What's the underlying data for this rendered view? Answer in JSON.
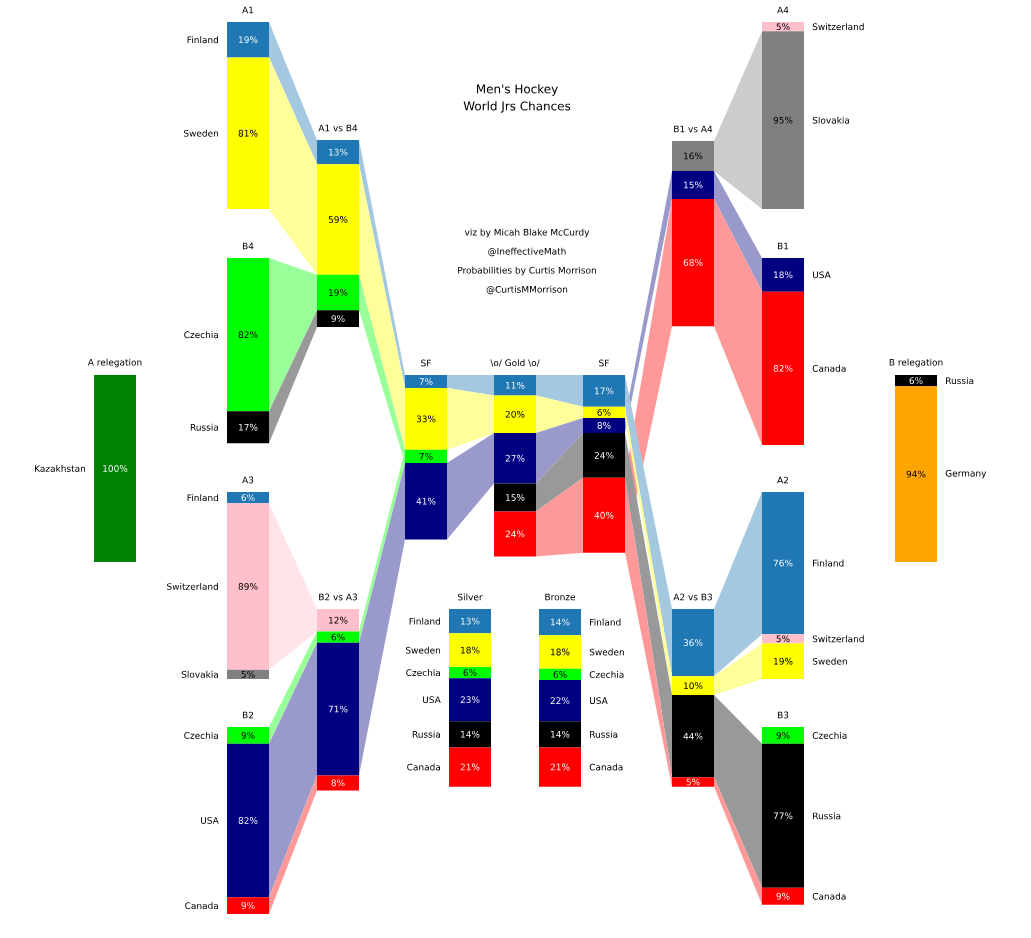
{
  "chart_data": [
    {
      "type": "other",
      "title": "Men's Hockey",
      "subtitle": "World Jrs Chances",
      "annotations": [
        "viz by Micah Blake McCurdy",
        "@IneffectiveMath",
        "Probabilities by Curtis Morrison",
        "@CurtisMMorrison"
      ]
    },
    {
      "type": "other",
      "title": "A1",
      "categories": [
        "Finland",
        "Sweden"
      ],
      "values": [
        19,
        81
      ],
      "colors": [
        "#1f77b4",
        "#ffff00"
      ],
      "value_labels": [
        "19%",
        "81%"
      ]
    },
    {
      "type": "other",
      "title": "B4",
      "categories": [
        "Czechia",
        "Russia"
      ],
      "values": [
        82,
        17
      ],
      "colors": [
        "#00ff00",
        "#000000"
      ],
      "value_labels": [
        "82%",
        "17%"
      ]
    },
    {
      "type": "other",
      "title": "A3",
      "categories": [
        "Finland",
        "Switzerland",
        "Slovakia"
      ],
      "values": [
        6,
        89,
        5
      ],
      "colors": [
        "#1f77b4",
        "#ffc0cb",
        "#808080"
      ],
      "value_labels": [
        "6%",
        "89%",
        "5%"
      ]
    },
    {
      "type": "other",
      "title": "B2",
      "categories": [
        "Czechia",
        "USA",
        "Canada"
      ],
      "values": [
        9,
        82,
        9
      ],
      "colors": [
        "#00ff00",
        "#000080",
        "#ff0000"
      ],
      "value_labels": [
        "9%",
        "82%",
        "9%"
      ]
    },
    {
      "type": "other",
      "title": "A relegation",
      "categories": [
        "Kazakhstan"
      ],
      "values": [
        100
      ],
      "colors": [
        "#008000"
      ],
      "value_labels": [
        "100%"
      ]
    },
    {
      "type": "other",
      "title": "A1 vs B4",
      "categories": [
        null,
        null,
        null,
        null
      ],
      "values": [
        13,
        59,
        19,
        9
      ],
      "colors": [
        "#1f77b4",
        "#ffff00",
        "#00ff00",
        "#000000"
      ],
      "value_labels": [
        "13%",
        "59%",
        "19%",
        "9%"
      ]
    },
    {
      "type": "other",
      "title": "B2 vs A3",
      "categories": [
        null,
        null,
        null,
        null
      ],
      "values": [
        12,
        6,
        71,
        8
      ],
      "colors": [
        "#ffc0cb",
        "#00ff00",
        "#000080",
        "#ff0000"
      ],
      "value_labels": [
        "12%",
        "6%",
        "71%",
        "8%"
      ]
    },
    {
      "type": "other",
      "title": "SF",
      "categories": [
        null,
        null,
        null,
        null
      ],
      "values": [
        7,
        33,
        7,
        41
      ],
      "colors": [
        "#1f77b4",
        "#ffff00",
        "#00ff00",
        "#000080"
      ],
      "value_labels": [
        "7%",
        "33%",
        "7%",
        "41%"
      ]
    },
    {
      "type": "other",
      "title": "\\o/ Gold \\o/",
      "categories": [
        null,
        null,
        null,
        null,
        null
      ],
      "values": [
        11,
        20,
        27,
        15,
        24
      ],
      "colors": [
        "#1f77b4",
        "#ffff00",
        "#000080",
        "#000000",
        "#ff0000"
      ],
      "value_labels": [
        "11%",
        "20%",
        "27%",
        "15%",
        "24%"
      ]
    },
    {
      "type": "other",
      "title": "SF",
      "categories": [
        null,
        null,
        null,
        null,
        null
      ],
      "values": [
        17,
        6,
        8,
        24,
        40
      ],
      "colors": [
        "#1f77b4",
        "#ffff00",
        "#000080",
        "#000000",
        "#ff0000"
      ],
      "value_labels": [
        "17%",
        "6%",
        "8%",
        "24%",
        "40%"
      ]
    },
    {
      "type": "other",
      "title": "Silver",
      "categories": [
        "Finland",
        "Sweden",
        "Czechia",
        "USA",
        "Russia",
        "Canada"
      ],
      "values": [
        13,
        18,
        6,
        23,
        14,
        21
      ],
      "colors": [
        "#1f77b4",
        "#ffff00",
        "#00ff00",
        "#000080",
        "#000000",
        "#ff0000"
      ],
      "value_labels": [
        "13%",
        "18%",
        "6%",
        "23%",
        "14%",
        "21%"
      ]
    },
    {
      "type": "other",
      "title": "Bronze",
      "categories": [
        "Finland",
        "Sweden",
        "Czechia",
        "USA",
        "Russia",
        "Canada"
      ],
      "values": [
        14,
        18,
        6,
        22,
        14,
        21
      ],
      "colors": [
        "#1f77b4",
        "#ffff00",
        "#00ff00",
        "#000080",
        "#000000",
        "#ff0000"
      ],
      "value_labels": [
        "14%",
        "18%",
        "6%",
        "22%",
        "14%",
        "21%"
      ]
    },
    {
      "type": "other",
      "title": "B1 vs A4",
      "categories": [
        null,
        null,
        null
      ],
      "values": [
        16,
        15,
        68
      ],
      "colors": [
        "#808080",
        "#000080",
        "#ff0000"
      ],
      "value_labels": [
        "16%",
        "15%",
        "68%"
      ]
    },
    {
      "type": "other",
      "title": "A2 vs B3",
      "categories": [
        null,
        null,
        null,
        null
      ],
      "values": [
        36,
        10,
        44,
        5
      ],
      "colors": [
        "#1f77b4",
        "#ffff00",
        "#000000",
        "#ff0000"
      ],
      "value_labels": [
        "36%",
        "10%",
        "44%",
        "5%"
      ]
    },
    {
      "type": "other",
      "title": "A4",
      "categories": [
        "Switzerland",
        "Slovakia"
      ],
      "values": [
        5,
        95
      ],
      "colors": [
        "#ffc0cb",
        "#808080"
      ],
      "value_labels": [
        "5%",
        "95%"
      ]
    },
    {
      "type": "other",
      "title": "B1",
      "categories": [
        "USA",
        "Canada"
      ],
      "values": [
        18,
        82
      ],
      "colors": [
        "#000080",
        "#ff0000"
      ],
      "value_labels": [
        "18%",
        "82%"
      ]
    },
    {
      "type": "other",
      "title": "A2",
      "categories": [
        "Finland",
        "Switzerland",
        "Sweden"
      ],
      "values": [
        76,
        5,
        19
      ],
      "colors": [
        "#1f77b4",
        "#ffc0cb",
        "#ffff00"
      ],
      "value_labels": [
        "76%",
        "5%",
        "19%"
      ]
    },
    {
      "type": "other",
      "title": "B3",
      "categories": [
        "Czechia",
        "Russia",
        "Canada"
      ],
      "values": [
        9,
        77,
        9
      ],
      "colors": [
        "#00ff00",
        "#000000",
        "#ff0000"
      ],
      "value_labels": [
        "9%",
        "77%",
        "9%"
      ]
    },
    {
      "type": "other",
      "title": "B relegation",
      "categories": [
        "Russia",
        "Germany"
      ],
      "values": [
        6,
        94
      ],
      "colors": [
        "#000000",
        "#ffa500"
      ],
      "value_labels": [
        "6%",
        "94%"
      ]
    }
  ]
}
